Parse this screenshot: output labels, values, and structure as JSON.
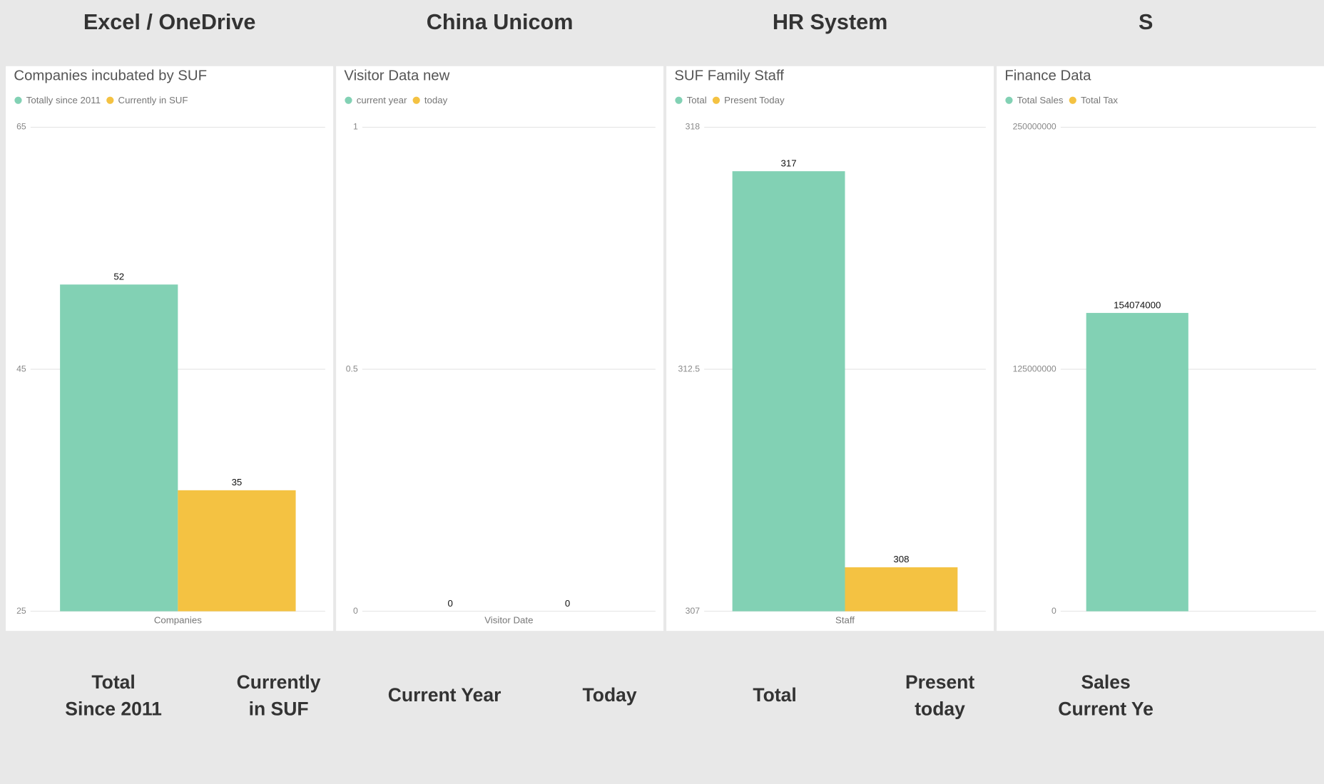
{
  "headers": [
    "Excel / OneDrive",
    "China Unicom",
    "HR System",
    "S"
  ],
  "chart_data": [
    {
      "type": "bar",
      "title": "Companies incubated by SUF",
      "categories": [
        "Companies"
      ],
      "series": [
        {
          "name": "Totally since 2011",
          "color": "#82d1b4",
          "values": [
            52
          ]
        },
        {
          "name": "Currently in SUF",
          "color": "#f4c242",
          "values": [
            35
          ]
        }
      ],
      "ylim": [
        25,
        65
      ],
      "yticks": [
        25,
        45,
        65
      ],
      "grid": true
    },
    {
      "type": "bar",
      "title": "Visitor Data new",
      "categories": [
        "Visitor Date"
      ],
      "series": [
        {
          "name": "current year",
          "color": "#82d1b4",
          "values": [
            0
          ]
        },
        {
          "name": "today",
          "color": "#f4c242",
          "values": [
            0
          ]
        }
      ],
      "ylim": [
        0,
        1
      ],
      "yticks": [
        0,
        0.5,
        1
      ],
      "grid": true
    },
    {
      "type": "bar",
      "title": "SUF Family Staff",
      "categories": [
        "Staff"
      ],
      "series": [
        {
          "name": "Total",
          "color": "#82d1b4",
          "values": [
            317
          ]
        },
        {
          "name": "Present Today",
          "color": "#f4c242",
          "values": [
            308
          ]
        }
      ],
      "ylim": [
        307,
        318
      ],
      "yticks": [
        307,
        312.5,
        318
      ],
      "grid": true
    },
    {
      "type": "bar",
      "title": "Finance Data",
      "categories": [
        null
      ],
      "series": [
        {
          "name": "Total Sales",
          "color": "#82d1b4",
          "values": [
            154074000
          ]
        },
        {
          "name": "Total Tax",
          "color": "#f4c242"
        }
      ],
      "ylim": [
        0,
        250000000
      ],
      "yticks": [
        0,
        125000000,
        250000000
      ],
      "grid": true
    }
  ],
  "footers": [
    [
      [
        "Total",
        "Since 2011"
      ],
      [
        "Currently",
        "in SUF"
      ]
    ],
    [
      [
        "Current Year"
      ],
      [
        "Today"
      ]
    ],
    [
      [
        "Total"
      ],
      [
        "Present",
        "today"
      ]
    ],
    [
      [
        "Sales",
        "Current Ye"
      ]
    ]
  ]
}
